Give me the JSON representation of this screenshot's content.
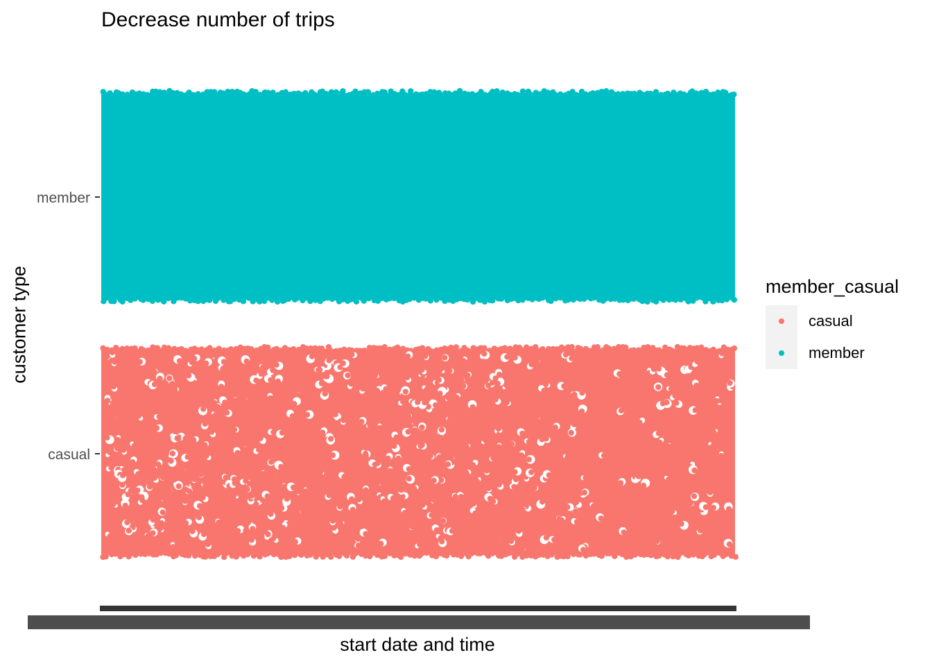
{
  "chart_data": {
    "type": "scatter",
    "title": "Decrease number of trips",
    "xlabel": "start date and time",
    "ylabel": "customer type",
    "categories": [
      "casual",
      "member"
    ],
    "series": [
      {
        "name": "casual",
        "category": "casual",
        "color": "#F8766D",
        "density": "gaps"
      },
      {
        "name": "member",
        "category": "member",
        "color": "#00BFC4",
        "density": "dense"
      }
    ],
    "x_axis_ticks": "overlapping unreadable date-time tick labels",
    "grid": false,
    "legend": {
      "title": "member_casual",
      "position": "right",
      "entries": [
        {
          "label": "casual",
          "color": "#F8766D"
        },
        {
          "label": "member",
          "color": "#00BFC4"
        }
      ]
    }
  }
}
